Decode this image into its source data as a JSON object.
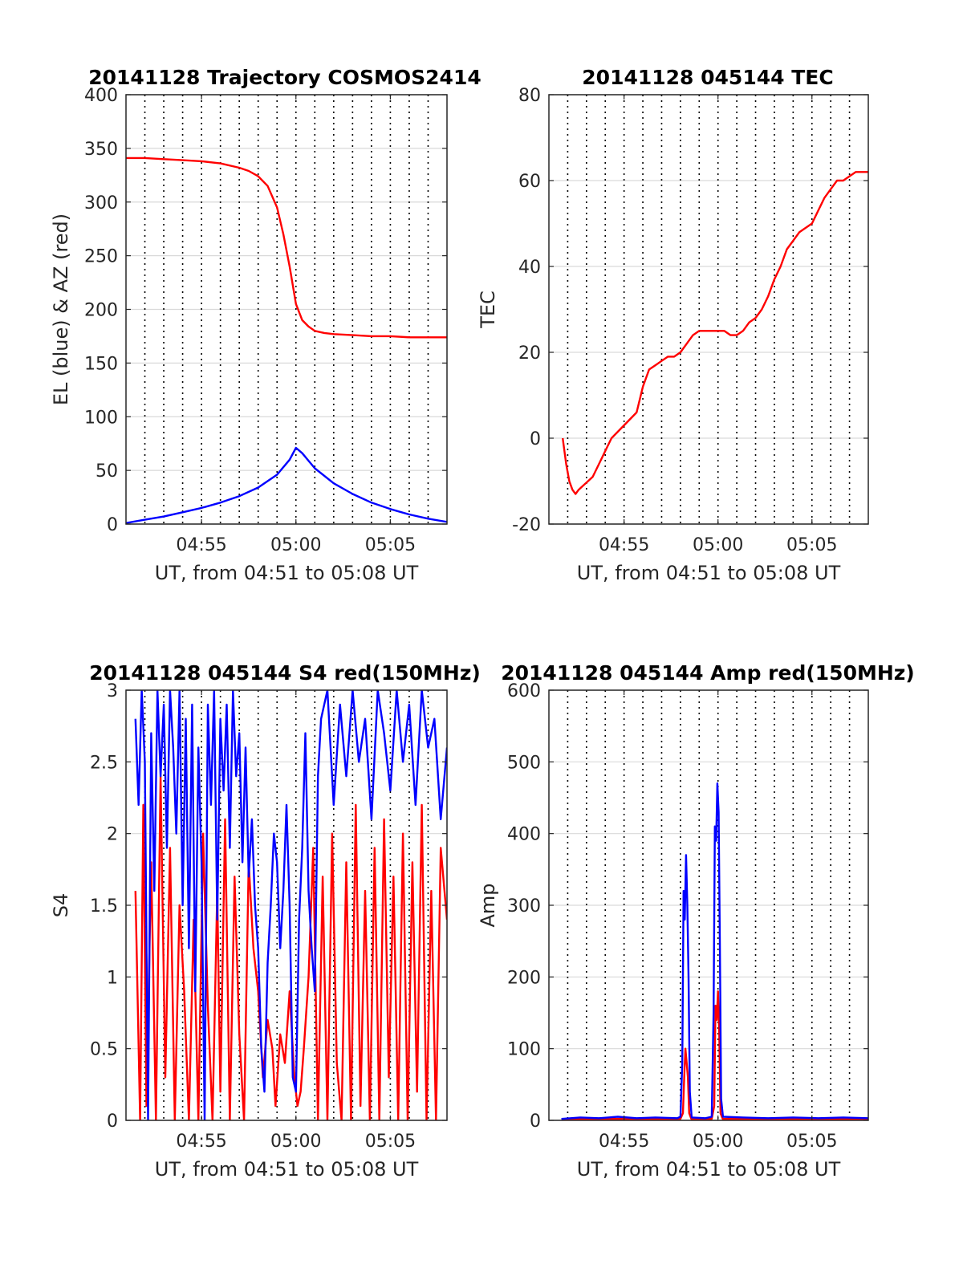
{
  "colors": {
    "el": "#0000ff",
    "az": "#ff0000",
    "grid": "#d9d9d9",
    "axes": "#262626"
  },
  "chart_data": [
    {
      "type": "line",
      "title": "20141128 Trajectory COSMOS2414",
      "xlabel": "UT, from 04:51 to 05:08 UT",
      "ylabel": "EL (blue) & AZ (red)",
      "xlim": [
        0,
        1020
      ],
      "ylim": [
        0,
        400
      ],
      "x_ticks": [
        {
          "value": 240,
          "label": "04:55"
        },
        {
          "value": 540,
          "label": "05:00"
        },
        {
          "value": 840,
          "label": "05:05"
        }
      ],
      "y_ticks": [
        {
          "value": 0,
          "label": "0"
        },
        {
          "value": 50,
          "label": "50"
        },
        {
          "value": 100,
          "label": "100"
        },
        {
          "value": 150,
          "label": "150"
        },
        {
          "value": 200,
          "label": "200"
        },
        {
          "value": 250,
          "label": "250"
        },
        {
          "value": 300,
          "label": "300"
        },
        {
          "value": 350,
          "label": "350"
        },
        {
          "value": 400,
          "label": "400"
        }
      ],
      "vlines": [
        60,
        120,
        180,
        240,
        300,
        360,
        420,
        480,
        540,
        600,
        660,
        720,
        780,
        840,
        900,
        960
      ],
      "series": [
        {
          "color": "az",
          "x": [
            0,
            60,
            120,
            180,
            240,
            300,
            360,
            390,
            420,
            450,
            480,
            500,
            520,
            540,
            560,
            580,
            600,
            630,
            660,
            720,
            780,
            840,
            900,
            960,
            1020
          ],
          "values": [
            341,
            341,
            340,
            339,
            338,
            336,
            332,
            329,
            324,
            315,
            295,
            270,
            240,
            205,
            190,
            184,
            180,
            178,
            177,
            176,
            175,
            175,
            174,
            174,
            174
          ]
        },
        {
          "color": "el",
          "x": [
            0,
            60,
            120,
            180,
            240,
            300,
            360,
            420,
            480,
            520,
            540,
            560,
            600,
            660,
            720,
            780,
            840,
            900,
            960,
            1020
          ],
          "values": [
            1,
            4,
            7,
            11,
            15,
            20,
            26,
            34,
            46,
            60,
            71,
            66,
            52,
            38,
            28,
            20,
            14,
            9,
            5,
            2
          ]
        }
      ]
    },
    {
      "type": "line",
      "title": "20141128 045144 TEC",
      "xlabel": "UT, from 04:51 to 05:08 UT",
      "ylabel": "TEC",
      "xlim": [
        0,
        1020
      ],
      "ylim": [
        -20,
        80
      ],
      "x_ticks": [
        {
          "value": 240,
          "label": "04:55"
        },
        {
          "value": 540,
          "label": "05:00"
        },
        {
          "value": 840,
          "label": "05:05"
        }
      ],
      "y_ticks": [
        {
          "value": -20,
          "label": "-20"
        },
        {
          "value": 0,
          "label": "0"
        },
        {
          "value": 20,
          "label": "20"
        },
        {
          "value": 40,
          "label": "40"
        },
        {
          "value": 60,
          "label": "60"
        },
        {
          "value": 80,
          "label": "80"
        }
      ],
      "vlines": [
        60,
        120,
        180,
        240,
        300,
        360,
        420,
        480,
        540,
        600,
        660,
        720,
        780,
        840,
        900,
        960
      ],
      "series": [
        {
          "color": "az",
          "x": [
            44,
            55,
            65,
            75,
            85,
            95,
            110,
            125,
            140,
            160,
            180,
            200,
            220,
            240,
            260,
            280,
            300,
            320,
            340,
            360,
            380,
            400,
            420,
            440,
            460,
            480,
            500,
            520,
            540,
            560,
            580,
            600,
            620,
            640,
            660,
            680,
            700,
            720,
            740,
            760,
            780,
            800,
            820,
            840,
            860,
            880,
            900,
            920,
            940,
            960,
            980,
            1000,
            1020
          ],
          "values": [
            0,
            -6,
            -10,
            -12,
            -13,
            -12,
            -11,
            -10,
            -9,
            -6,
            -3,
            0,
            1.5,
            3,
            4.5,
            6,
            12,
            16,
            17,
            18,
            19,
            19,
            20,
            22,
            24,
            25,
            25,
            25,
            25,
            25,
            24,
            24,
            25,
            27,
            28,
            30,
            33,
            37,
            40,
            44,
            46,
            48,
            49,
            50,
            53,
            56,
            58,
            60,
            60,
            61,
            62,
            62,
            62
          ]
        }
      ]
    },
    {
      "type": "line",
      "title": "20141128 045144 S4 red(150MHz)",
      "xlabel": "UT, from 04:51 to 05:08 UT",
      "ylabel": "S4",
      "xlim": [
        0,
        1020
      ],
      "ylim": [
        0,
        3
      ],
      "x_ticks": [
        {
          "value": 240,
          "label": "04:55"
        },
        {
          "value": 540,
          "label": "05:00"
        },
        {
          "value": 840,
          "label": "05:05"
        }
      ],
      "y_ticks": [
        {
          "value": 0,
          "label": "0"
        },
        {
          "value": 0.5,
          "label": "0.5"
        },
        {
          "value": 1,
          "label": "1"
        },
        {
          "value": 1.5,
          "label": "1.5"
        },
        {
          "value": 2,
          "label": "2"
        },
        {
          "value": 2.5,
          "label": "2.5"
        },
        {
          "value": 3,
          "label": "3"
        }
      ],
      "vlines": [
        60,
        120,
        180,
        240,
        300,
        360,
        420,
        480,
        540,
        600,
        660,
        720,
        780,
        840,
        900,
        960
      ],
      "series": [
        {
          "color": "az",
          "x": [
            30,
            45,
            55,
            65,
            80,
            95,
            110,
            125,
            140,
            155,
            170,
            185,
            200,
            215,
            230,
            245,
            260,
            275,
            290,
            300,
            315,
            330,
            345,
            360,
            375,
            390,
            405,
            420,
            435,
            450,
            465,
            475,
            490,
            505,
            520,
            535,
            545,
            555,
            565,
            580,
            595,
            610,
            625,
            640,
            655,
            670,
            685,
            700,
            715,
            730,
            745,
            760,
            775,
            790,
            805,
            820,
            835,
            850,
            865,
            880,
            895,
            910,
            925,
            940,
            955,
            970,
            985,
            1000,
            1020
          ],
          "values": [
            1.6,
            0,
            2.2,
            0.1,
            1.8,
            0,
            2.4,
            0.3,
            1.9,
            0,
            1.5,
            0.9,
            0,
            1.4,
            0,
            2.0,
            0.8,
            0,
            1.6,
            0.2,
            2.1,
            0,
            1.7,
            0.6,
            0,
            1.8,
            1.2,
            0.9,
            0.3,
            0.7,
            0.5,
            0.1,
            0.6,
            0.4,
            0.9,
            0.3,
            0.1,
            0.2,
            0.5,
            1.0,
            1.9,
            0,
            1.7,
            0,
            2.0,
            0.4,
            0,
            1.8,
            0,
            2.2,
            0.1,
            1.6,
            0,
            1.9,
            0,
            2.1,
            0.3,
            1.7,
            0,
            2.0,
            0,
            1.8,
            0.2,
            2.2,
            0,
            1.6,
            0,
            1.9,
            1.4
          ]
        },
        {
          "color": "el",
          "x": [
            30,
            40,
            50,
            60,
            70,
            80,
            90,
            100,
            110,
            120,
            130,
            140,
            150,
            160,
            170,
            180,
            190,
            200,
            210,
            220,
            230,
            240,
            250,
            260,
            270,
            280,
            290,
            300,
            310,
            320,
            330,
            340,
            350,
            360,
            370,
            380,
            390,
            400,
            410,
            420,
            430,
            440,
            450,
            460,
            470,
            480,
            490,
            500,
            510,
            520,
            530,
            540,
            550,
            560,
            570,
            580,
            590,
            600,
            610,
            620,
            640,
            660,
            680,
            700,
            720,
            740,
            760,
            780,
            800,
            820,
            840,
            860,
            880,
            900,
            920,
            940,
            960,
            980,
            1000,
            1020
          ],
          "values": [
            2.8,
            2.2,
            3.0,
            2.5,
            0,
            2.7,
            1.6,
            3.0,
            2.4,
            2.9,
            1.9,
            3.0,
            2.6,
            2.0,
            3.0,
            1.5,
            2.8,
            1.2,
            2.9,
            0.9,
            2.6,
            1.8,
            0,
            2.9,
            2.2,
            3.0,
            1.4,
            2.8,
            2.3,
            2.9,
            1.9,
            3.0,
            2.4,
            2.7,
            1.8,
            2.6,
            1.7,
            2.1,
            1.5,
            1.2,
            0.5,
            0.2,
            1.1,
            1.5,
            2.0,
            1.8,
            1.2,
            1.6,
            2.2,
            1.5,
            0.3,
            0.2,
            1.4,
            1.9,
            2.7,
            1.6,
            1.2,
            0.9,
            2.4,
            2.8,
            3.0,
            2.2,
            2.9,
            2.4,
            3.0,
            2.5,
            2.8,
            2.1,
            3.0,
            2.7,
            2.3,
            3.0,
            2.5,
            2.9,
            2.2,
            3.0,
            2.6,
            2.8,
            2.1,
            2.6
          ]
        }
      ]
    },
    {
      "type": "line",
      "title": "20141128 045144 Amp red(150MHz)",
      "xlabel": "UT, from 04:51 to 05:08 UT",
      "ylabel": "Amp",
      "xlim": [
        0,
        1020
      ],
      "ylim": [
        0,
        600
      ],
      "x_ticks": [
        {
          "value": 240,
          "label": "04:55"
        },
        {
          "value": 540,
          "label": "05:00"
        },
        {
          "value": 840,
          "label": "05:05"
        }
      ],
      "y_ticks": [
        {
          "value": 0,
          "label": "0"
        },
        {
          "value": 100,
          "label": "100"
        },
        {
          "value": 200,
          "label": "200"
        },
        {
          "value": 300,
          "label": "300"
        },
        {
          "value": 400,
          "label": "400"
        },
        {
          "value": 500,
          "label": "500"
        },
        {
          "value": 600,
          "label": "600"
        }
      ],
      "vlines": [
        60,
        120,
        180,
        240,
        300,
        360,
        420,
        480,
        540,
        600,
        660,
        720,
        780,
        840,
        900,
        960
      ],
      "series": [
        {
          "color": "az",
          "x": [
            40,
            420,
            428,
            432,
            436,
            440,
            444,
            448,
            455,
            520,
            528,
            532,
            536,
            540,
            544,
            548,
            555,
            1020
          ],
          "values": [
            2,
            2,
            10,
            60,
            100,
            80,
            60,
            10,
            2,
            2,
            20,
            160,
            140,
            180,
            120,
            10,
            2,
            2
          ]
        },
        {
          "color": "el",
          "x": [
            40,
            100,
            160,
            220,
            280,
            340,
            410,
            420,
            426,
            430,
            434,
            438,
            442,
            446,
            450,
            456,
            500,
            520,
            526,
            530,
            534,
            538,
            542,
            546,
            550,
            556,
            620,
            700,
            780,
            860,
            940,
            1020
          ],
          "values": [
            2,
            4,
            3,
            5,
            3,
            4,
            3,
            5,
            80,
            320,
            280,
            370,
            300,
            200,
            40,
            4,
            3,
            5,
            150,
            410,
            390,
            470,
            430,
            250,
            30,
            5,
            4,
            3,
            4,
            3,
            4,
            3
          ]
        }
      ]
    }
  ]
}
